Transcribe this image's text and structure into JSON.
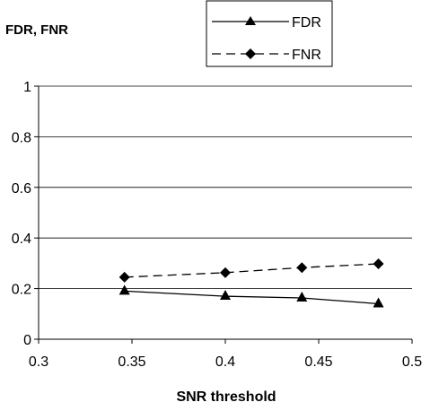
{
  "chart_data": {
    "type": "line",
    "title": "",
    "ylabel": "FDR, FNR",
    "xlabel": "SNR threshold",
    "xlim": [
      0.3,
      0.5
    ],
    "ylim": [
      0,
      1
    ],
    "xticks": [
      "0.3",
      "0.35",
      "0.4",
      "0.45",
      "0.5"
    ],
    "yticks": [
      "0",
      "0.2",
      "0.4",
      "0.6",
      "0.8",
      "1"
    ],
    "grid": "horizontal",
    "legend": "top-center",
    "series": [
      {
        "name": "FDR",
        "style": "solid",
        "marker": "triangle",
        "color": "#000000",
        "x": [
          0.346,
          0.4,
          0.441,
          0.482
        ],
        "y": [
          0.19,
          0.17,
          0.163,
          0.14
        ]
      },
      {
        "name": "FNR",
        "style": "dashed",
        "marker": "diamond",
        "color": "#000000",
        "x": [
          0.346,
          0.4,
          0.441,
          0.482
        ],
        "y": [
          0.245,
          0.263,
          0.283,
          0.298
        ]
      }
    ]
  }
}
